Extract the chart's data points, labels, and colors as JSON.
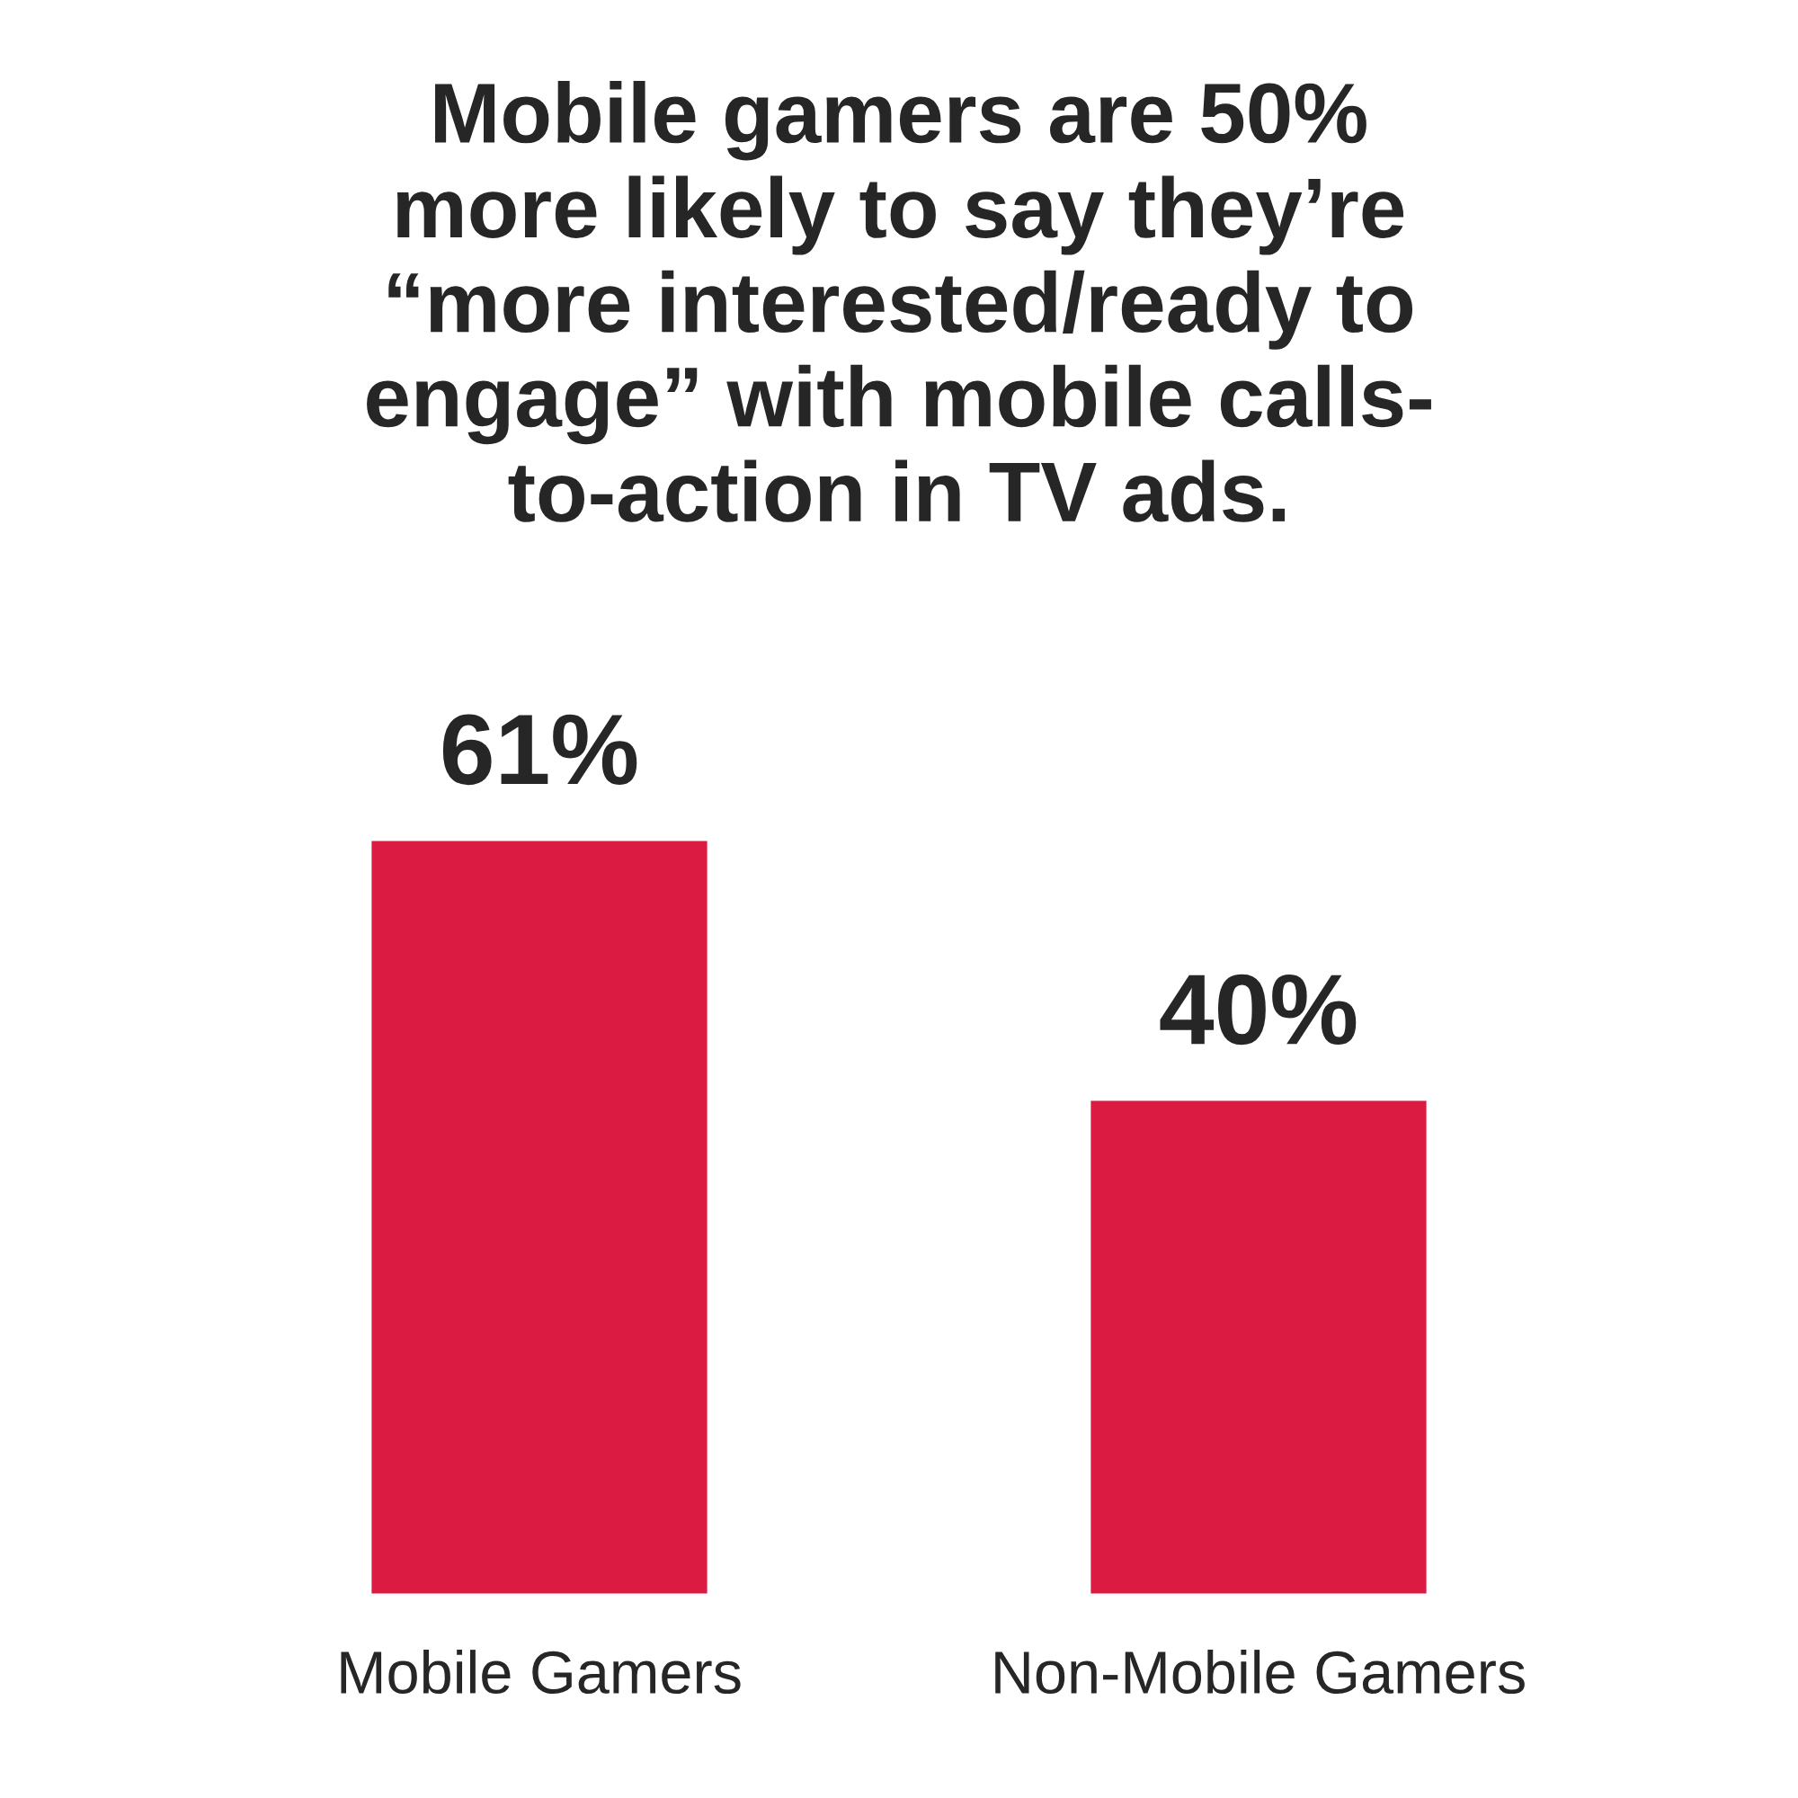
{
  "chart_data": {
    "type": "bar",
    "title": "Mobile gamers are 50%\nmore likely to say they’re\n“more interested/ready to\nengage” with mobile calls-\nto-action in TV ads.",
    "categories": [
      "Mobile Gamers",
      "Non-Mobile Gamers"
    ],
    "values": [
      61,
      40
    ],
    "value_labels": [
      "61%",
      "40%"
    ],
    "color": "#db1b42"
  }
}
